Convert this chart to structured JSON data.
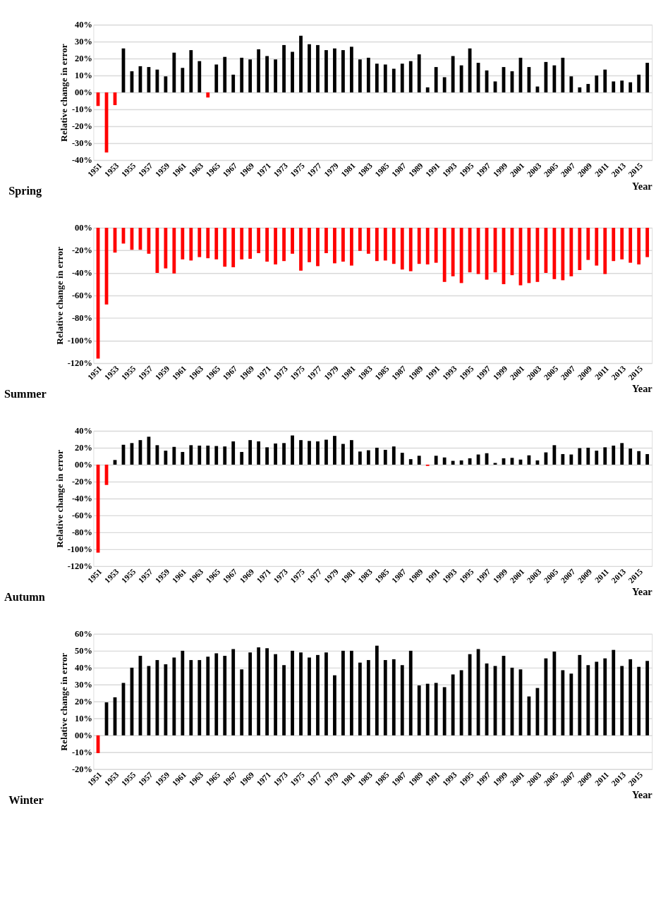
{
  "chart_data": [
    {
      "type": "bar",
      "title": "Spring",
      "xlabel": "Year",
      "ylabel": "Relative change in error",
      "grid": "y",
      "categories": [
        "1951",
        null,
        "1953",
        null,
        "1955",
        null,
        "1957",
        null,
        "1959",
        null,
        "1961",
        null,
        "1963",
        null,
        "1965",
        null,
        "1967",
        null,
        "1969",
        null,
        "1971",
        null,
        "1973",
        null,
        "1975",
        null,
        "1977",
        null,
        "1979",
        null,
        "1981",
        null,
        "1983",
        null,
        "1985",
        null,
        "1987",
        null,
        "1989",
        null,
        "1991",
        null,
        "1993",
        null,
        "1995",
        null,
        "1997",
        null,
        "1999",
        null,
        "2001",
        null,
        "2003",
        null,
        "2005",
        null,
        "2007",
        null,
        "2009",
        null,
        "2011",
        null,
        "2013",
        null,
        "2015",
        null
      ],
      "values": [
        -8,
        -35.5,
        -7.5,
        26,
        12.5,
        15.5,
        15,
        13.5,
        9.5,
        23.5,
        14.5,
        25,
        18.5,
        -3,
        16.5,
        21,
        10.5,
        20.5,
        19.5,
        25.5,
        21.5,
        19.5,
        28,
        24,
        33.5,
        28.5,
        28,
        25,
        26,
        25,
        27,
        19.5,
        20.5,
        17,
        16.5,
        14,
        17,
        18.5,
        22.5,
        3,
        15,
        9,
        21.5,
        16,
        26,
        17.5,
        13,
        6.5,
        15,
        12.5,
        20.5,
        15,
        3.5,
        18,
        16,
        20.5,
        9.5,
        3,
        5,
        10,
        13.5,
        6.5,
        7,
        6,
        10.5,
        17.5
      ],
      "colors": [
        "#ff0000",
        "#ff0000",
        "#ff0000",
        "#000000",
        "#000000",
        "#000000",
        "#000000",
        "#000000",
        "#000000",
        "#000000",
        "#000000",
        "#000000",
        "#000000",
        "#ff0000",
        "#000000",
        "#000000",
        "#000000",
        "#000000",
        "#000000",
        "#000000",
        "#000000",
        "#000000",
        "#000000",
        "#000000",
        "#000000",
        "#000000",
        "#000000",
        "#000000",
        "#000000",
        "#000000",
        "#000000",
        "#000000",
        "#000000",
        "#000000",
        "#000000",
        "#000000",
        "#000000",
        "#000000",
        "#000000",
        "#000000",
        "#000000",
        "#000000",
        "#000000",
        "#000000",
        "#000000",
        "#000000",
        "#000000",
        "#000000",
        "#000000",
        "#000000",
        "#000000",
        "#000000",
        "#000000",
        "#000000",
        "#000000",
        "#000000",
        "#000000",
        "#000000",
        "#000000",
        "#000000",
        "#000000",
        "#000000",
        "#000000",
        "#000000",
        "#000000",
        "#000000"
      ],
      "ylim": [
        -40,
        40
      ],
      "yticks": [
        {
          "value": -40,
          "label": "-40%"
        },
        {
          "value": -30,
          "label": "-30%"
        },
        {
          "value": -20,
          "label": "-20%"
        },
        {
          "value": -10,
          "label": "-10%"
        },
        {
          "value": 0,
          "label": "00%"
        },
        {
          "value": 10,
          "label": "10%"
        },
        {
          "value": 20,
          "label": "20%"
        },
        {
          "value": 30,
          "label": "30%"
        },
        {
          "value": 40,
          "label": "40%"
        }
      ]
    },
    {
      "type": "bar",
      "title": "Summer",
      "xlabel": "Year",
      "ylabel": "Relative change in error",
      "grid": "y",
      "categories": [
        "1951",
        null,
        "1953",
        null,
        "1955",
        null,
        "1957",
        null,
        "1959",
        null,
        "1961",
        null,
        "1963",
        null,
        "1965",
        null,
        "1967",
        null,
        "1969",
        null,
        "1971",
        null,
        "1973",
        null,
        "1975",
        null,
        "1977",
        null,
        "1979",
        null,
        "1981",
        null,
        "1983",
        null,
        "1985",
        null,
        "1987",
        null,
        "1989",
        null,
        "1991",
        null,
        "1993",
        null,
        "1995",
        null,
        "1997",
        null,
        "1999",
        null,
        "2001",
        null,
        "2003",
        null,
        "2005",
        null,
        "2007",
        null,
        "2009",
        null,
        "2011",
        null,
        "2013",
        null,
        "2015",
        null
      ],
      "values": [
        -116,
        -68,
        -22,
        -14,
        -19.5,
        -19.5,
        -23,
        -40,
        -36,
        -40.5,
        -28,
        -29,
        -26,
        -27,
        -28,
        -34.5,
        -35,
        -28,
        -27.5,
        -22.5,
        -30,
        -32.5,
        -29.5,
        -23,
        -38,
        -30.5,
        -34,
        -22.5,
        -31.5,
        -30,
        -33.5,
        -20.5,
        -23,
        -29.5,
        -29,
        -32,
        -37,
        -38.5,
        -32,
        -32.5,
        -31,
        -48,
        -43,
        -49,
        -39.5,
        -41,
        -46,
        -39.5,
        -50,
        -42,
        -51,
        -49,
        -48,
        -40,
        -45.5,
        -46.5,
        -43,
        -37.5,
        -28.5,
        -33.5,
        -41,
        -29.5,
        -28,
        -31,
        -32.5,
        -26
      ],
      "colors": [
        "#ff0000",
        "#ff0000",
        "#ff0000",
        "#ff0000",
        "#ff0000",
        "#ff0000",
        "#ff0000",
        "#ff0000",
        "#ff0000",
        "#ff0000",
        "#ff0000",
        "#ff0000",
        "#ff0000",
        "#ff0000",
        "#ff0000",
        "#ff0000",
        "#ff0000",
        "#ff0000",
        "#ff0000",
        "#ff0000",
        "#ff0000",
        "#ff0000",
        "#ff0000",
        "#ff0000",
        "#ff0000",
        "#ff0000",
        "#ff0000",
        "#ff0000",
        "#ff0000",
        "#ff0000",
        "#ff0000",
        "#ff0000",
        "#ff0000",
        "#ff0000",
        "#ff0000",
        "#ff0000",
        "#ff0000",
        "#ff0000",
        "#ff0000",
        "#ff0000",
        "#ff0000",
        "#ff0000",
        "#ff0000",
        "#ff0000",
        "#ff0000",
        "#ff0000",
        "#ff0000",
        "#ff0000",
        "#ff0000",
        "#ff0000",
        "#ff0000",
        "#ff0000",
        "#ff0000",
        "#ff0000",
        "#ff0000",
        "#ff0000",
        "#ff0000",
        "#ff0000",
        "#ff0000",
        "#ff0000",
        "#ff0000",
        "#ff0000",
        "#ff0000",
        "#ff0000",
        "#ff0000",
        "#ff0000"
      ],
      "ylim": [
        -120,
        0
      ],
      "yticks": [
        {
          "value": -120,
          "label": "-120%"
        },
        {
          "value": -100,
          "label": "-100%"
        },
        {
          "value": -80,
          "label": "-80%"
        },
        {
          "value": -60,
          "label": "-60%"
        },
        {
          "value": -40,
          "label": "-40%"
        },
        {
          "value": -20,
          "label": "-20%"
        },
        {
          "value": 0,
          "label": "00%"
        }
      ]
    },
    {
      "type": "bar",
      "title": "Autumn",
      "xlabel": "Year",
      "ylabel": "Relative change in error",
      "grid": "y",
      "categories": [
        "1951",
        null,
        "1953",
        null,
        "1955",
        null,
        "1957",
        null,
        "1959",
        null,
        "1961",
        null,
        "1963",
        null,
        "1965",
        null,
        "1967",
        null,
        "1969",
        null,
        "1971",
        null,
        "1973",
        null,
        "1975",
        null,
        "1977",
        null,
        "1979",
        null,
        "1981",
        null,
        "1983",
        null,
        "1985",
        null,
        "1987",
        null,
        "1989",
        null,
        "1991",
        null,
        "1993",
        null,
        "1995",
        null,
        "1997",
        null,
        "1999",
        null,
        "2001",
        null,
        "2003",
        null,
        "2005",
        null,
        "2007",
        null,
        "2009",
        null,
        "2011",
        null,
        "2013",
        null,
        "2015",
        null
      ],
      "values": [
        -104,
        -24,
        5.5,
        23.5,
        25.5,
        29,
        33,
        23,
        16.5,
        21,
        15,
        23,
        22.5,
        22.5,
        22,
        21.5,
        27.5,
        15,
        29,
        27.5,
        20.5,
        25,
        25.5,
        34.5,
        29,
        28,
        27.5,
        29.5,
        34,
        24.5,
        29,
        15.5,
        17,
        20,
        17.5,
        21.5,
        14,
        6.5,
        10.5,
        -1.5,
        10.5,
        8.5,
        4.5,
        5,
        7.5,
        12,
        13.5,
        2,
        7.5,
        8,
        6,
        11,
        5,
        14.5,
        23,
        12.5,
        12,
        19.5,
        20,
        16.5,
        20.5,
        22.5,
        25.5,
        19,
        16,
        12.5
      ],
      "colors": [
        "#ff0000",
        "#ff0000",
        "#000000",
        "#000000",
        "#000000",
        "#000000",
        "#000000",
        "#000000",
        "#000000",
        "#000000",
        "#000000",
        "#000000",
        "#000000",
        "#000000",
        "#000000",
        "#000000",
        "#000000",
        "#000000",
        "#000000",
        "#000000",
        "#000000",
        "#000000",
        "#000000",
        "#000000",
        "#000000",
        "#000000",
        "#000000",
        "#000000",
        "#000000",
        "#000000",
        "#000000",
        "#000000",
        "#000000",
        "#000000",
        "#000000",
        "#000000",
        "#000000",
        "#000000",
        "#000000",
        "#ff0000",
        "#000000",
        "#000000",
        "#000000",
        "#000000",
        "#000000",
        "#000000",
        "#000000",
        "#000000",
        "#000000",
        "#000000",
        "#000000",
        "#000000",
        "#000000",
        "#000000",
        "#000000",
        "#000000",
        "#000000",
        "#000000",
        "#000000",
        "#000000",
        "#000000",
        "#000000",
        "#000000",
        "#000000",
        "#000000",
        "#000000"
      ],
      "ylim": [
        -120,
        40
      ],
      "yticks": [
        {
          "value": -120,
          "label": "-120%"
        },
        {
          "value": -100,
          "label": "-100%"
        },
        {
          "value": -80,
          "label": "-80%"
        },
        {
          "value": -60,
          "label": "-60%"
        },
        {
          "value": -40,
          "label": "-40%"
        },
        {
          "value": -20,
          "label": "-20%"
        },
        {
          "value": 0,
          "label": "00%"
        },
        {
          "value": 20,
          "label": "20%"
        },
        {
          "value": 40,
          "label": "40%"
        }
      ]
    },
    {
      "type": "bar",
      "title": "Winter",
      "xlabel": "Year",
      "ylabel": "Relative change in error",
      "grid": "y",
      "categories": [
        "1951",
        null,
        "1953",
        null,
        "1955",
        null,
        "1957",
        null,
        "1959",
        null,
        "1961",
        null,
        "1963",
        null,
        "1965",
        null,
        "1967",
        null,
        "1969",
        null,
        "1971",
        null,
        "1973",
        null,
        "1975",
        null,
        "1977",
        null,
        "1979",
        null,
        "1981",
        null,
        "1983",
        null,
        "1985",
        null,
        "1987",
        null,
        "1989",
        null,
        "1991",
        null,
        "1993",
        null,
        "1995",
        null,
        "1997",
        null,
        "1999",
        null,
        "2001",
        null,
        "2003",
        null,
        "2005",
        null,
        "2007",
        null,
        "2009",
        null,
        "2011",
        null,
        "2013",
        null,
        "2015",
        null
      ],
      "values": [
        -10.5,
        19.5,
        22.5,
        31,
        40,
        47,
        41,
        44.5,
        42,
        46,
        50,
        44.5,
        44.5,
        46.5,
        48.5,
        47,
        51,
        39,
        49,
        52,
        51.5,
        48,
        41.5,
        50,
        49,
        46,
        47.5,
        49,
        35.5,
        50,
        50,
        43,
        44.5,
        53,
        44.5,
        45,
        41.5,
        50,
        29.5,
        30.5,
        31,
        28.5,
        36,
        38.5,
        48,
        51,
        42.5,
        41,
        47,
        40,
        39,
        23,
        28,
        45.5,
        49.5,
        38.5,
        36.5,
        47.5,
        41.5,
        43.5,
        45.5,
        50.5,
        41,
        45,
        40.5,
        44
      ],
      "colors": [
        "#ff0000",
        "#000000",
        "#000000",
        "#000000",
        "#000000",
        "#000000",
        "#000000",
        "#000000",
        "#000000",
        "#000000",
        "#000000",
        "#000000",
        "#000000",
        "#000000",
        "#000000",
        "#000000",
        "#000000",
        "#000000",
        "#000000",
        "#000000",
        "#000000",
        "#000000",
        "#000000",
        "#000000",
        "#000000",
        "#000000",
        "#000000",
        "#000000",
        "#000000",
        "#000000",
        "#000000",
        "#000000",
        "#000000",
        "#000000",
        "#000000",
        "#000000",
        "#000000",
        "#000000",
        "#000000",
        "#000000",
        "#000000",
        "#000000",
        "#000000",
        "#000000",
        "#000000",
        "#000000",
        "#000000",
        "#000000",
        "#000000",
        "#000000",
        "#000000",
        "#000000",
        "#000000",
        "#000000",
        "#000000",
        "#000000",
        "#000000",
        "#000000",
        "#000000",
        "#000000",
        "#000000",
        "#000000",
        "#000000",
        "#000000",
        "#000000",
        "#000000"
      ],
      "ylim": [
        -20,
        60
      ],
      "yticks": [
        {
          "value": -20,
          "label": "-20%"
        },
        {
          "value": -10,
          "label": "-10%"
        },
        {
          "value": 0,
          "label": "00%"
        },
        {
          "value": 10,
          "label": "10%"
        },
        {
          "value": 20,
          "label": "20%"
        },
        {
          "value": 30,
          "label": "30%"
        },
        {
          "value": 40,
          "label": "40%"
        },
        {
          "value": 50,
          "label": "50%"
        },
        {
          "value": 60,
          "label": "60%"
        }
      ]
    }
  ]
}
